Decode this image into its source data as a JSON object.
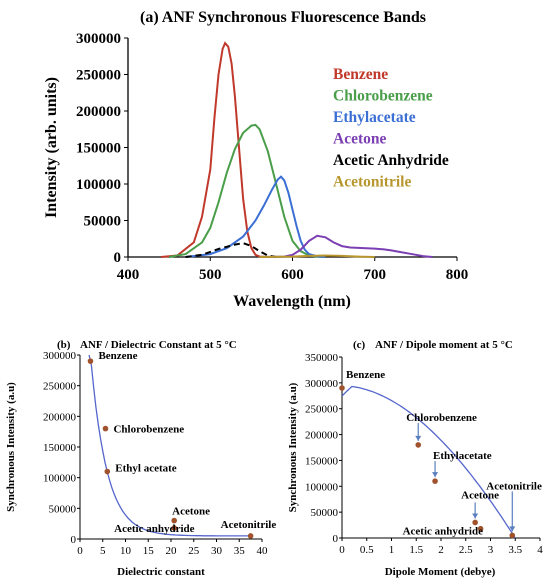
{
  "chart_data": [
    {
      "type": "line",
      "title": "(a) ANF Synchronous Fluorescence Bands",
      "xlabel": "Wavelength (nm)",
      "ylabel": "Intensity (arb. units)",
      "xlim": [
        400,
        800
      ],
      "ylim": [
        0,
        300000
      ],
      "xticks": [
        400,
        500,
        600,
        700,
        800
      ],
      "yticks": [
        0,
        50000,
        100000,
        150000,
        200000,
        250000,
        300000
      ],
      "ytick_labels": [
        "0",
        "50000",
        "100000",
        "150000",
        "200000",
        "250000",
        "300000"
      ],
      "legend_position": "right",
      "series": [
        {
          "name": "Benzene",
          "color": "#c0392b",
          "dash": false,
          "x": [
            440,
            460,
            480,
            490,
            500,
            505,
            510,
            515,
            518,
            522,
            526,
            530,
            535,
            540,
            545,
            550,
            555,
            560,
            570
          ],
          "y": [
            0,
            2000,
            20000,
            55000,
            120000,
            190000,
            250000,
            285000,
            293000,
            288000,
            265000,
            220000,
            150000,
            80000,
            35000,
            12000,
            3000,
            500,
            0
          ]
        },
        {
          "name": "Chlorobenzene",
          "color": "#4a9e4a",
          "dash": false,
          "x": [
            450,
            470,
            490,
            500,
            510,
            520,
            530,
            540,
            550,
            555,
            560,
            570,
            580,
            590,
            600,
            610,
            620,
            630,
            640
          ],
          "y": [
            0,
            4000,
            20000,
            40000,
            75000,
            115000,
            148000,
            170000,
            180000,
            181000,
            175000,
            145000,
            100000,
            55000,
            22000,
            8000,
            2000,
            500,
            0
          ]
        },
        {
          "name": "Ethylacetate",
          "color": "#3b6fd4",
          "dash": false,
          "x": [
            470,
            500,
            520,
            540,
            555,
            565,
            575,
            582,
            586,
            590,
            595,
            600,
            605,
            610,
            615,
            620,
            630,
            640
          ],
          "y": [
            0,
            4000,
            12000,
            28000,
            50000,
            70000,
            92000,
            106000,
            110000,
            105000,
            88000,
            65000,
            42000,
            22000,
            10000,
            4000,
            1000,
            0
          ]
        },
        {
          "name": "Acetone",
          "color": "#7b3fb3",
          "dash": false,
          "x": [
            560,
            590,
            600,
            610,
            620,
            630,
            640,
            650,
            660,
            670,
            680,
            690,
            700,
            710,
            720,
            730,
            740,
            750,
            760,
            770
          ],
          "y": [
            0,
            500,
            3000,
            10000,
            22000,
            29000,
            27000,
            20000,
            15000,
            13000,
            12500,
            12000,
            11500,
            10500,
            9000,
            7000,
            5000,
            3000,
            1000,
            0
          ]
        },
        {
          "name": "Acetic Anhydride",
          "color": "#000000",
          "dash": true,
          "x": [
            470,
            490,
            500,
            510,
            520,
            530,
            540,
            550,
            560,
            570,
            580
          ],
          "y": [
            0,
            3000,
            7000,
            11000,
            14000,
            17000,
            19000,
            15000,
            8000,
            2000,
            0
          ]
        },
        {
          "name": "Acetonitrile",
          "color": "#b8962e",
          "dash": false,
          "x": [
            560,
            600,
            620,
            640,
            660,
            680,
            700
          ],
          "y": [
            0,
            500,
            1500,
            2000,
            1500,
            500,
            0
          ]
        }
      ]
    },
    {
      "type": "scatter",
      "title": "ANF / Dielectric Constant at 5 °C",
      "panel_label": "(b)",
      "xlabel": "Dielectric constant",
      "ylabel": "Synchronous Intensity (a.u)",
      "xlim": [
        0,
        40
      ],
      "ylim": [
        0,
        300000
      ],
      "xticks": [
        0,
        5,
        10,
        15,
        20,
        25,
        30,
        35,
        40
      ],
      "yticks": [
        0,
        50000,
        100000,
        150000,
        200000,
        250000,
        300000
      ],
      "ytick_labels": [
        "0",
        "50000",
        "100000",
        "150000",
        "200000",
        "250000",
        "300000"
      ],
      "points": [
        {
          "label": "Benzene",
          "x": 2.3,
          "y": 290000
        },
        {
          "label": "Chlorobenzene",
          "x": 5.6,
          "y": 180000
        },
        {
          "label": "Ethyl acetate",
          "x": 6.0,
          "y": 110000
        },
        {
          "label": "Acetone",
          "x": 20.7,
          "y": 30000
        },
        {
          "label": "Acetic anhydride",
          "x": 20.7,
          "y": 18000
        },
        {
          "label": "Acetonitrile",
          "x": 37.5,
          "y": 5000
        }
      ],
      "fit": {
        "type": "exponential",
        "color": "#5566cc"
      },
      "point_color": "#a0522d"
    },
    {
      "type": "scatter",
      "title": "ANF / Dipole moment at 5 °C",
      "panel_label": "(c)",
      "xlabel": "Dipole Moment (debye)",
      "ylabel": "Synchronous Intensity (a.u)",
      "xlim": [
        0,
        4
      ],
      "ylim": [
        0,
        350000
      ],
      "xticks": [
        0,
        0.5,
        1,
        1.5,
        2,
        2.5,
        3,
        3.5,
        4
      ],
      "xtick_labels": [
        "0",
        "0.5",
        "1",
        "1.5",
        "2",
        "2.5",
        "3",
        "3.5",
        "4"
      ],
      "yticks": [
        0,
        50000,
        100000,
        150000,
        200000,
        250000,
        300000,
        350000
      ],
      "ytick_labels": [
        "0",
        "50000",
        "100000",
        "150000",
        "200000",
        "250000",
        "300000",
        "350000"
      ],
      "points": [
        {
          "label": "Benzene",
          "x": 0.0,
          "y": 290000
        },
        {
          "label": "Chlorobenzene",
          "x": 1.54,
          "y": 180000
        },
        {
          "label": "Ethylacetate",
          "x": 1.88,
          "y": 110000
        },
        {
          "label": "Acetone",
          "x": 2.69,
          "y": 30000
        },
        {
          "label": "Acetic anhydride",
          "x": 2.8,
          "y": 18000
        },
        {
          "label": "Acetonitrile",
          "x": 3.44,
          "y": 5000
        }
      ],
      "fit": {
        "type": "polynomial",
        "color": "#5566cc"
      },
      "point_color": "#a0522d"
    }
  ]
}
